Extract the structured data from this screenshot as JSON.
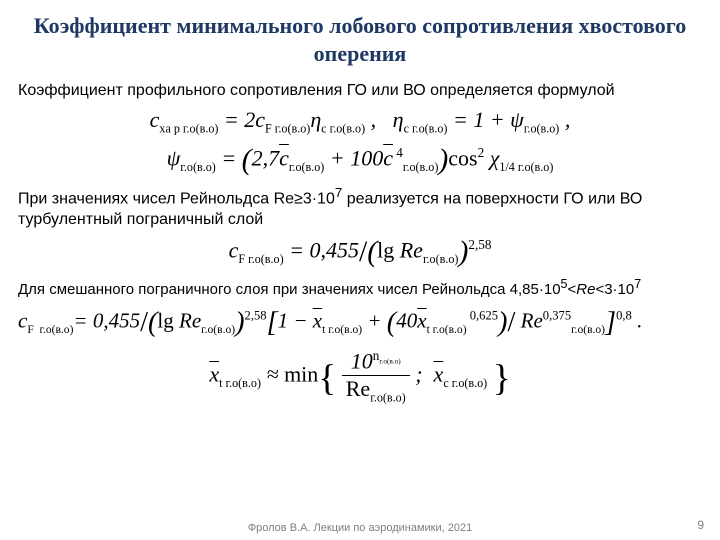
{
  "title": "Коэффициент минимального лобового сопротивления хвостового оперения",
  "para1": "Коэффициент профильного сопротивления ГО или ВО определяется формулой",
  "formula1": "c<span class='sub'>xa&nbsp;p&nbsp;г.о(в.о)</span> = 2c<span class='sub'>F&nbsp;г.о(в.о)</span>&eta;<span class='sub'>c&nbsp;г.о(в.о)</span> ,&nbsp;&nbsp;&nbsp;&eta;<span class='sub'>c&nbsp;г.о(в.о)</span> = 1 + &psi;<span class='sub'>г.о(в.о)</span> ,",
  "formula2": "&psi;<span class='sub'>г.о(в.о)</span> = <span class='big'>(</span>2,7<span class='over'>c</span><span class='sub'>г.о(в.о)</span> + 100<span class='over'>c</span><span class='sup'>&nbsp;4</span><span class='sub'>г.о(в.о)</span><span class='big'>)</span><span class='rm'>cos</span><span class='sup'>2</span> &chi;<span class='sub'>1/4&nbsp;г.о(в.о)</span>",
  "para2_html": "При значениях чисел Рейнольдса Re&ge;3&middot;10<sup>7</sup> реализуется на поверхности ГО или ВО турбулентный пограничный слой",
  "formula3": "c<span class='sub'>F&nbsp;г.о(в.о)</span> = 0,455<span class='big rm'>/</span><span class='big'>(</span><span class='rm'>lg</span> Re<span class='sub'>г.о(в.о)</span><span class='big'>)</span><span class='sup'>2,58</span>",
  "para3_html": "Для смешанного пограничного слоя при значениях чисел Рейнольдса 4,85&middot;10<sup>5</sup>&lt;<i>Re</i>&lt;3&middot;10<sup>7</sup>",
  "formula4": "c<span class='sub'>F&nbsp;&nbsp;г.о(в.о)</span>= 0,455<span class='big rm'>/</span><span class='big'>(</span><span class='rm'>lg</span> Re<span class='sub'>г.о(в.о)</span><span class='big'>)</span><span class='sup'>2,58</span><span class='big'>[</span>1 &minus; <span class='over'>x</span><span class='sub'>t&nbsp;г.о(в.о)</span> + <span class='big'>(</span>40<span class='over'>x</span><span class='sub'>t&nbsp;г.о(в.о)</span><span class='sup'>&nbsp;0,625</span><span class='big'>)</span><span class='big rm'>/</span> Re<span class='sup'>0,375</span><span class='sub'>г.о(в.о)</span><span class='big'>]</span><span class='sup'>0,8</span>&nbsp;.",
  "formula5": "<span class='over'>x</span><span class='sub'>t&nbsp;г.о(в.о)</span> &asymp; <span class='rm'>min</span><span class='brace'>{</span>&nbsp;<span class='frac'><span class='num'>10<span class='sup'>n<span class='sub'>г.о(в.о)</span></span></span><span class='den'><span class='rm'>Re</span><span class='sub'>г.о(в.о)</span></span></span>&nbsp;;&nbsp;&nbsp;<span class='over'>x</span><span class='sub'>c&nbsp;г.о(в.о)</span>&nbsp;<span class='brace'>}</span>",
  "footer": "Фролов В.А. Лекции по аэродинамики, 2021",
  "page": "9"
}
